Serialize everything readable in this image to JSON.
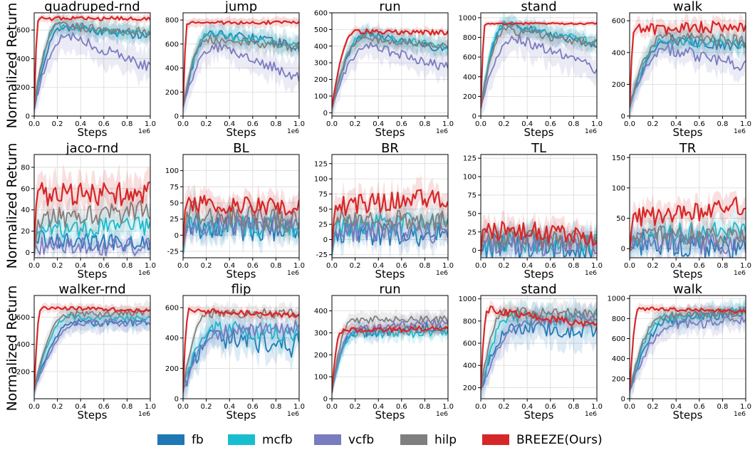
{
  "figure": {
    "row_ylabel": "Normalized Return",
    "xlabel": "Steps",
    "xexp": "1e6",
    "xticks": [
      "0.0",
      "0.2",
      "0.4",
      "0.6",
      "0.8",
      "1.0"
    ]
  },
  "legend": [
    {
      "name": "fb",
      "color": "#1f77b4"
    },
    {
      "name": "mcfb",
      "color": "#17becf"
    },
    {
      "name": "vcfb",
      "color": "#7b7bc0"
    },
    {
      "name": "hilp",
      "color": "#7f7f7f"
    },
    {
      "name": "BREEZE(Ours)",
      "color": "#d62728"
    }
  ],
  "chart_data": [
    {
      "type": "line",
      "title": "quadruped-rnd",
      "ylim": [
        0,
        720
      ],
      "yticks": [
        0,
        200,
        400,
        600
      ],
      "final": [
        560,
        560,
        340,
        590,
        680
      ],
      "plateau": [
        620,
        640,
        560,
        630,
        680
      ],
      "rise": [
        0.25,
        0.22,
        0.28,
        0.2,
        0.04
      ],
      "noise": [
        0.05,
        0.05,
        0.07,
        0.05,
        0.02
      ],
      "band": [
        0.1,
        0.1,
        0.2,
        0.1,
        0.04
      ]
    },
    {
      "type": "line",
      "title": "jump",
      "ylim": [
        0,
        860
      ],
      "yticks": [
        0,
        200,
        400,
        600,
        800
      ],
      "final": [
        580,
        590,
        330,
        570,
        780
      ],
      "plateau": [
        700,
        680,
        580,
        640,
        780
      ],
      "rise": [
        0.25,
        0.22,
        0.28,
        0.2,
        0.04
      ],
      "noise": [
        0.06,
        0.06,
        0.08,
        0.06,
        0.02
      ],
      "band": [
        0.12,
        0.12,
        0.2,
        0.12,
        0.05
      ]
    },
    {
      "type": "line",
      "title": "run",
      "ylim": [
        -20,
        600
      ],
      "yticks": [
        0,
        100,
        200,
        300,
        400,
        500,
        600
      ],
      "final": [
        380,
        390,
        270,
        400,
        480
      ],
      "plateau": [
        470,
        470,
        400,
        440,
        490
      ],
      "rise": [
        0.3,
        0.28,
        0.32,
        0.26,
        0.2
      ],
      "noise": [
        0.05,
        0.05,
        0.07,
        0.05,
        0.03
      ],
      "band": [
        0.12,
        0.12,
        0.2,
        0.12,
        0.05
      ]
    },
    {
      "type": "line",
      "title": "stand",
      "ylim": [
        0,
        1050
      ],
      "yticks": [
        0,
        200,
        400,
        600,
        800,
        1000
      ],
      "final": [
        720,
        750,
        480,
        730,
        940
      ],
      "plateau": [
        940,
        930,
        800,
        880,
        940
      ],
      "rise": [
        0.22,
        0.2,
        0.3,
        0.22,
        0.04
      ],
      "noise": [
        0.04,
        0.04,
        0.07,
        0.05,
        0.01
      ],
      "band": [
        0.1,
        0.1,
        0.2,
        0.1,
        0.03
      ]
    },
    {
      "type": "line",
      "title": "walk",
      "ylim": [
        0,
        650
      ],
      "yticks": [
        0,
        200,
        400,
        600
      ],
      "final": [
        440,
        450,
        320,
        470,
        570
      ],
      "plateau": [
        480,
        480,
        420,
        500,
        540
      ],
      "rise": [
        0.35,
        0.3,
        0.32,
        0.3,
        0.04
      ],
      "noise": [
        0.08,
        0.08,
        0.1,
        0.08,
        0.07
      ],
      "band": [
        0.14,
        0.14,
        0.2,
        0.14,
        0.1
      ]
    },
    {
      "type": "line",
      "title": "jaco-rnd",
      "ylim": [
        -5,
        92
      ],
      "yticks": [
        0,
        20,
        40,
        60,
        80
      ],
      "final": [
        8,
        25,
        5,
        40,
        55
      ],
      "plateau": [
        12,
        22,
        6,
        30,
        55
      ],
      "rise": [
        0.05,
        0.05,
        0.05,
        0.05,
        0.03
      ],
      "noise": [
        0.6,
        0.4,
        0.6,
        0.35,
        0.2
      ],
      "band": [
        0.6,
        0.6,
        0.6,
        0.5,
        0.3
      ]
    },
    {
      "type": "line",
      "title": "BL",
      "ylim": [
        -35,
        125
      ],
      "yticks": [
        -25,
        0,
        25,
        50,
        75,
        100
      ],
      "final": [
        5,
        12,
        18,
        20,
        42
      ],
      "plateau": [
        15,
        18,
        15,
        38,
        48
      ],
      "rise": [
        0.05,
        0.05,
        0.05,
        0.05,
        0.03
      ],
      "noise": [
        0.8,
        0.7,
        0.7,
        0.5,
        0.3
      ],
      "band": [
        0.8,
        0.8,
        0.8,
        0.6,
        0.4
      ]
    },
    {
      "type": "line",
      "title": "BR",
      "ylim": [
        -30,
        140
      ],
      "yticks": [
        -25,
        0,
        25,
        50,
        75,
        100,
        125
      ],
      "final": [
        5,
        30,
        10,
        30,
        70
      ],
      "plateau": [
        12,
        22,
        15,
        35,
        55
      ],
      "rise": [
        0.05,
        0.05,
        0.05,
        0.05,
        0.03
      ],
      "noise": [
        0.8,
        0.7,
        0.7,
        0.5,
        0.3
      ],
      "band": [
        0.8,
        0.8,
        0.8,
        0.6,
        0.4
      ]
    },
    {
      "type": "line",
      "title": "TL",
      "ylim": [
        -10,
        130
      ],
      "yticks": [
        0,
        25,
        50,
        75,
        100,
        125
      ],
      "final": [
        2,
        10,
        5,
        15,
        20
      ],
      "plateau": [
        8,
        12,
        8,
        18,
        28
      ],
      "rise": [
        0.05,
        0.05,
        0.05,
        0.05,
        0.02
      ],
      "noise": [
        0.9,
        0.7,
        0.7,
        0.6,
        0.5
      ],
      "band": [
        0.9,
        0.9,
        0.9,
        0.7,
        0.6
      ]
    },
    {
      "type": "line",
      "title": "TR",
      "ylim": [
        -15,
        155
      ],
      "yticks": [
        0,
        50,
        100,
        150
      ],
      "final": [
        5,
        30,
        8,
        20,
        70
      ],
      "plateau": [
        12,
        20,
        10,
        25,
        50
      ],
      "rise": [
        0.05,
        0.05,
        0.05,
        0.05,
        0.03
      ],
      "noise": [
        0.9,
        0.7,
        0.7,
        0.6,
        0.35
      ],
      "band": [
        0.9,
        0.9,
        0.9,
        0.7,
        0.4
      ]
    },
    {
      "type": "line",
      "title": "walker-rnd",
      "ylim": [
        0,
        760
      ],
      "yticks": [
        200,
        400,
        600
      ],
      "final": [
        560,
        590,
        560,
        640,
        650
      ],
      "plateau": [
        560,
        600,
        560,
        620,
        670
      ],
      "rise": [
        0.35,
        0.3,
        0.4,
        0.28,
        0.06
      ],
      "noise": [
        0.05,
        0.04,
        0.05,
        0.04,
        0.02
      ],
      "band": [
        0.12,
        0.1,
        0.12,
        0.1,
        0.05
      ]
    },
    {
      "type": "line",
      "title": "flip",
      "ylim": [
        0,
        680
      ],
      "yticks": [
        0,
        200,
        400,
        600
      ],
      "final": [
        350,
        430,
        480,
        560,
        550
      ],
      "plateau": [
        420,
        460,
        430,
        560,
        580
      ],
      "rise": [
        0.3,
        0.25,
        0.3,
        0.2,
        0.05
      ],
      "noise": [
        0.2,
        0.12,
        0.12,
        0.06,
        0.03
      ],
      "band": [
        0.25,
        0.2,
        0.2,
        0.1,
        0.05
      ]
    },
    {
      "type": "line",
      "title": "run",
      "ylim": [
        0,
        470
      ],
      "yticks": [
        0,
        100,
        200,
        300,
        400
      ],
      "final": [
        330,
        300,
        350,
        360,
        320
      ],
      "plateau": [
        300,
        300,
        320,
        360,
        310
      ],
      "rise": [
        0.2,
        0.2,
        0.2,
        0.18,
        0.08
      ],
      "noise": [
        0.08,
        0.08,
        0.06,
        0.05,
        0.04
      ],
      "band": [
        0.12,
        0.12,
        0.12,
        0.1,
        0.08
      ]
    },
    {
      "type": "line",
      "title": "stand",
      "ylim": [
        100,
        1030
      ],
      "yticks": [
        200,
        400,
        600,
        800,
        1000
      ],
      "final": [
        700,
        820,
        850,
        870,
        760
      ],
      "plateau": [
        760,
        830,
        790,
        880,
        900
      ],
      "rise": [
        0.3,
        0.25,
        0.4,
        0.2,
        0.06
      ],
      "noise": [
        0.1,
        0.08,
        0.06,
        0.05,
        0.04
      ],
      "band": [
        0.2,
        0.15,
        0.15,
        0.1,
        0.06
      ]
    },
    {
      "type": "line",
      "title": "walk",
      "ylim": [
        0,
        1030
      ],
      "yticks": [
        0,
        200,
        400,
        600,
        800,
        1000
      ],
      "final": [
        880,
        880,
        780,
        860,
        870
      ],
      "plateau": [
        780,
        800,
        740,
        820,
        900
      ],
      "rise": [
        0.35,
        0.3,
        0.4,
        0.28,
        0.08
      ],
      "noise": [
        0.07,
        0.06,
        0.07,
        0.05,
        0.02
      ],
      "band": [
        0.15,
        0.12,
        0.15,
        0.1,
        0.05
      ]
    }
  ]
}
